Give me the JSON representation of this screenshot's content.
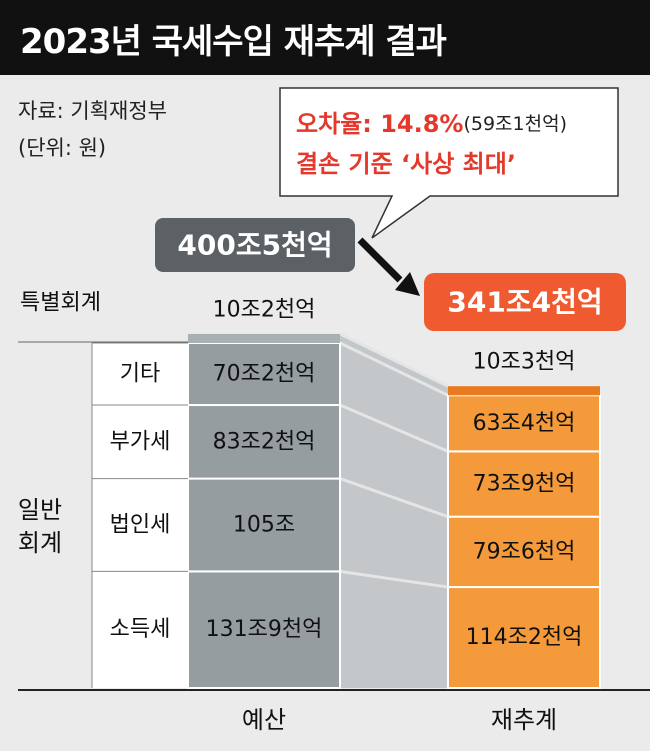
{
  "header": {
    "title": "2023년 국세수입 재추계 결과"
  },
  "source": "자료: 기획재정부",
  "unit": "(단위: 원)",
  "callout": {
    "line1_label": "오차율: 14.8%",
    "line1_detail": "(59조1천억)",
    "line2": "결손 기준 ‘사상 최대’"
  },
  "colors": {
    "budget": "#969da1",
    "budget_top": "#a9b0b4",
    "reestimate": "#f59a3b",
    "reestimate_top": "#e87a1f",
    "total_budget_box": "#5b6165",
    "total_reestimate_box": "#ef5a30",
    "callout_text": "#e5382c"
  },
  "chart_data": {
    "type": "bar",
    "subtype": "stacked",
    "categories": [
      "예산",
      "재추계"
    ],
    "totals": [
      "400조5천억",
      "341조4천억"
    ],
    "group_labels": {
      "special": "특별회계",
      "general": "일반\n회계"
    },
    "series": [
      {
        "name": "소득세",
        "values": [
          131.9,
          114.2
        ],
        "labels": [
          "131조9천억",
          "114조2천억"
        ]
      },
      {
        "name": "법인세",
        "values": [
          105.0,
          79.6
        ],
        "labels": [
          "105조",
          "79조6천억"
        ]
      },
      {
        "name": "부가세",
        "values": [
          83.2,
          73.9
        ],
        "labels": [
          "83조2천억",
          "73조9천억"
        ]
      },
      {
        "name": "기타",
        "values": [
          70.2,
          63.4
        ],
        "labels": [
          "70조2천억",
          "63조4천억"
        ]
      },
      {
        "name": "특별회계",
        "values": [
          10.2,
          10.3
        ],
        "labels": [
          "10조2천억",
          "10조3천억"
        ]
      }
    ],
    "unit": "원"
  }
}
